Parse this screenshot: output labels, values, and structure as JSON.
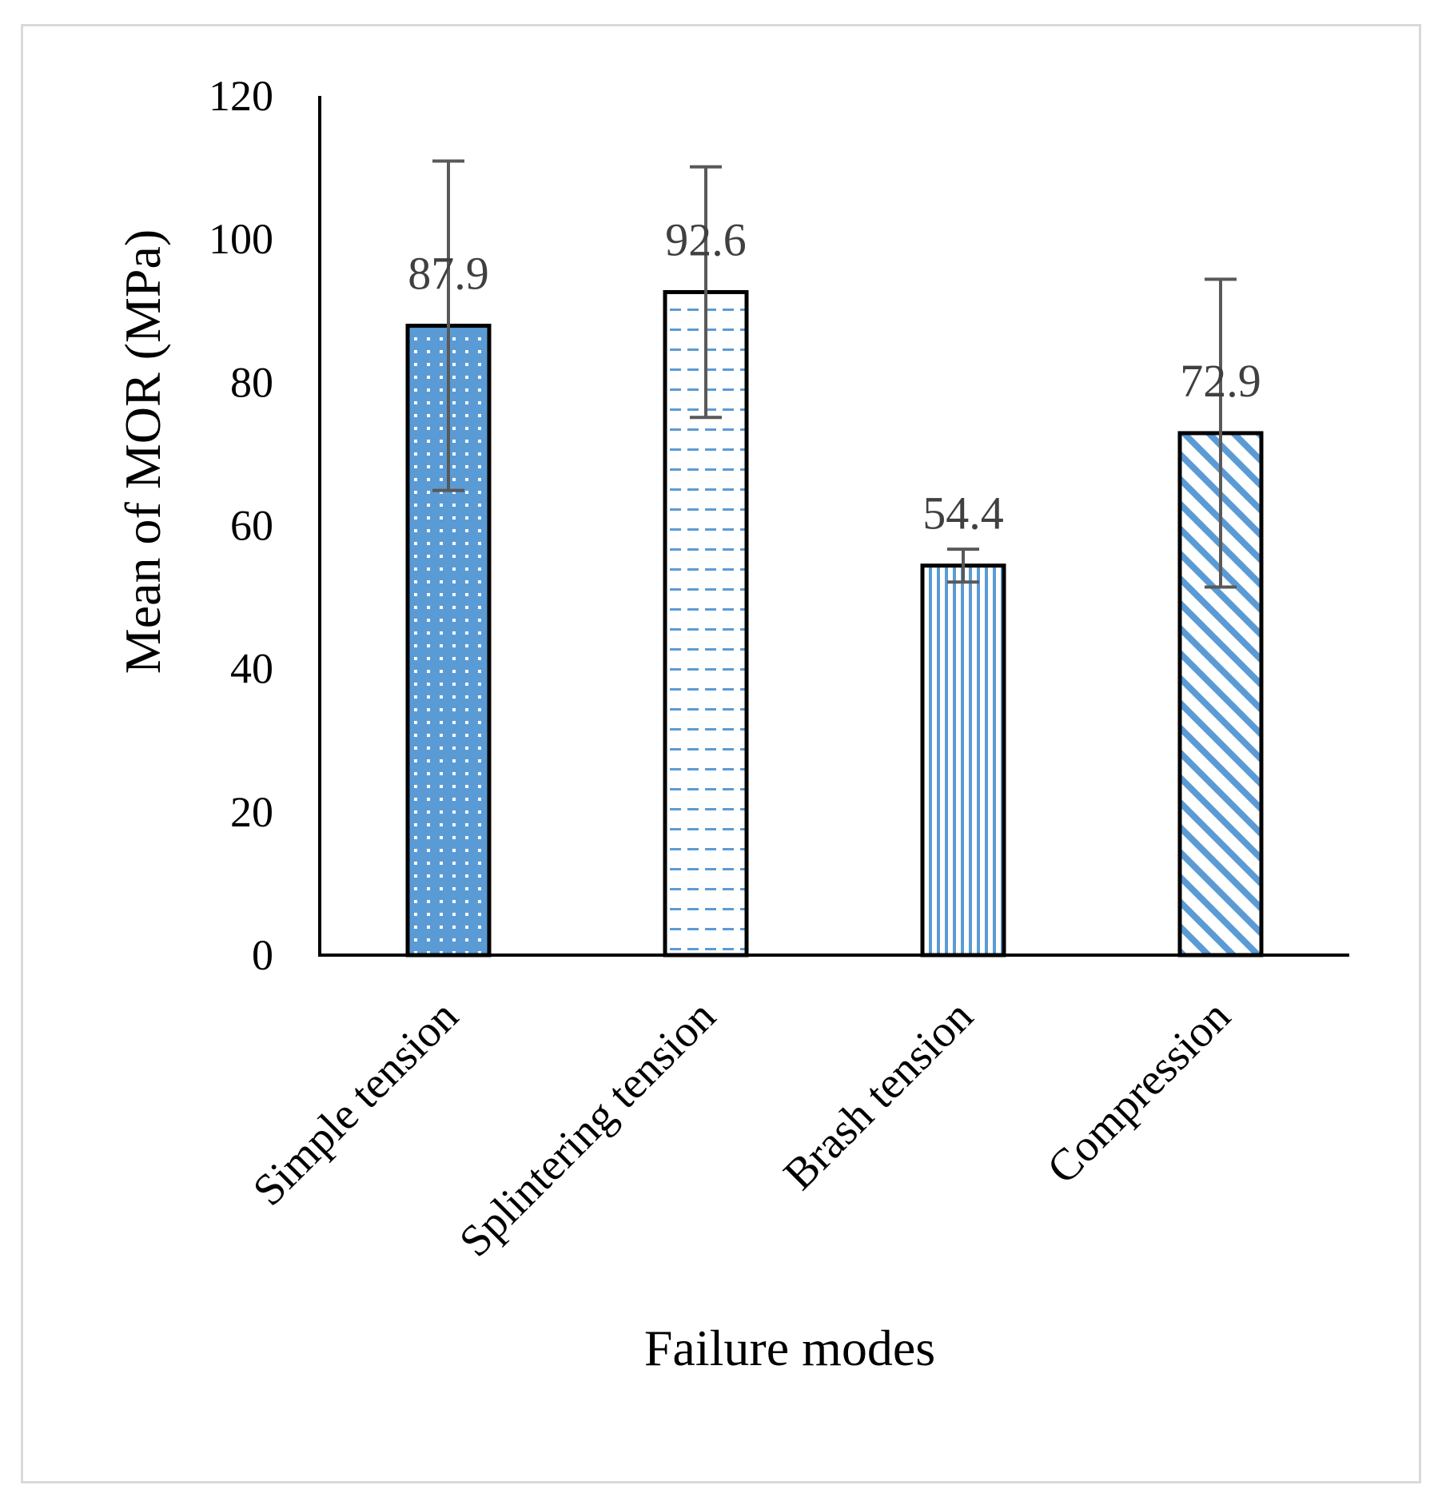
{
  "chart_data": {
    "type": "bar",
    "title": "",
    "xlabel": "Failure modes",
    "ylabel": "Mean of MOR (MPa)",
    "ylim": [
      0,
      120
    ],
    "yticks": [
      0,
      20,
      40,
      60,
      80,
      100,
      120
    ],
    "ytick_labels": [
      "0",
      "20",
      "40",
      "60",
      "80",
      "100",
      "120"
    ],
    "categories": [
      "Simple tension",
      "Splintering tension",
      "Brash tension",
      "Compression"
    ],
    "values": [
      87.9,
      92.6,
      54.4,
      72.9
    ],
    "value_labels": [
      "87.9",
      "92.6",
      "54.4",
      "72.9"
    ],
    "errors": [
      23,
      17.5,
      2.3,
      21.5
    ],
    "patterns": [
      "dots",
      "dashes",
      "vertical-stripes",
      "diagonal-stripes"
    ],
    "grid": false,
    "legend": "none",
    "colors": {
      "fill": "#5b9bd5",
      "outline": "#000000",
      "error_bar": "#595959",
      "data_label": "#404040",
      "frame": "#d9d9d9"
    }
  }
}
